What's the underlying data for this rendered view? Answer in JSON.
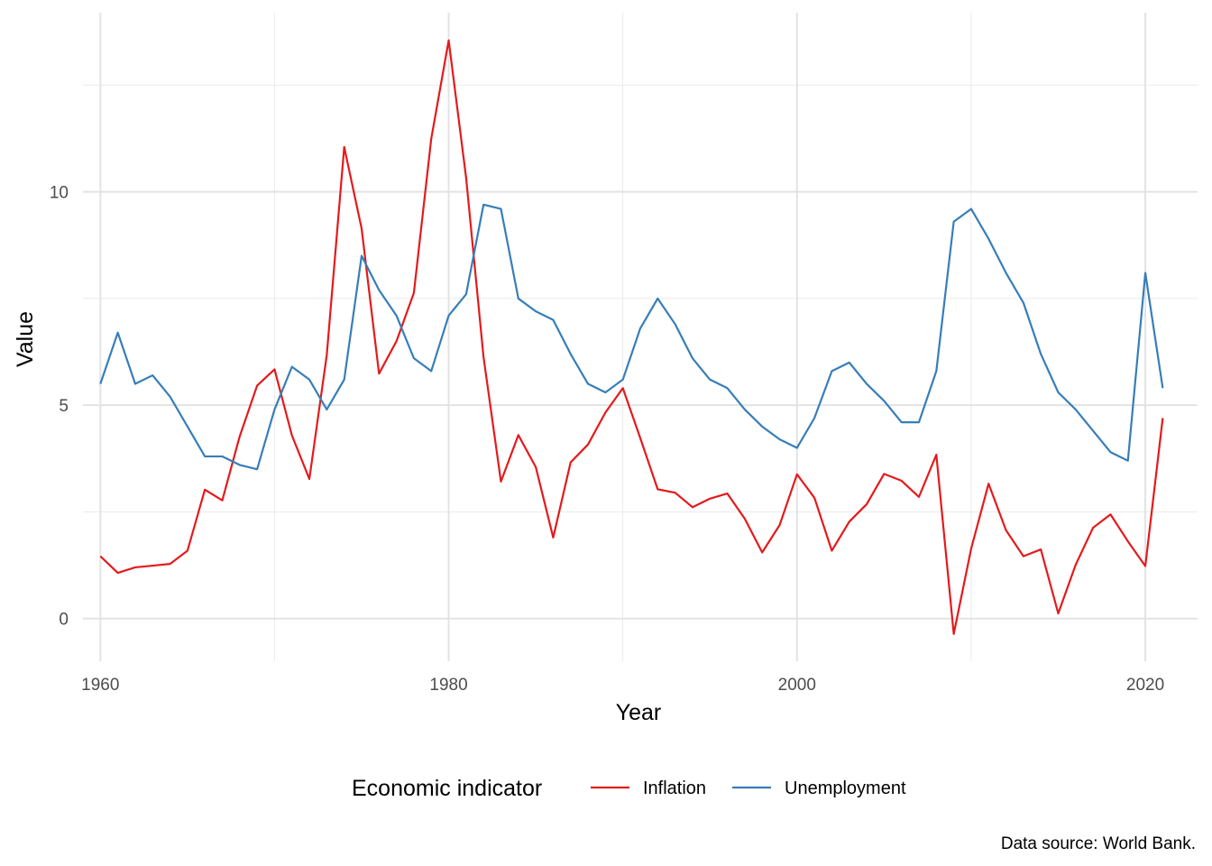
{
  "chart_data": {
    "type": "line",
    "xlabel": "Year",
    "ylabel": "Value",
    "caption": "Data source: World Bank.",
    "legend": {
      "title": "Economic indicator",
      "position": "bottom"
    },
    "xlim": [
      1959,
      2023
    ],
    "ylim": [
      -1,
      14.2
    ],
    "x_ticks": [
      1960,
      1980,
      2000,
      2020
    ],
    "y_ticks": [
      0,
      5,
      10
    ],
    "grid": true,
    "x": [
      1960,
      1961,
      1962,
      1963,
      1964,
      1965,
      1966,
      1967,
      1968,
      1969,
      1970,
      1971,
      1972,
      1973,
      1974,
      1975,
      1976,
      1977,
      1978,
      1979,
      1980,
      1981,
      1982,
      1983,
      1984,
      1985,
      1986,
      1987,
      1988,
      1989,
      1990,
      1991,
      1992,
      1993,
      1994,
      1995,
      1996,
      1997,
      1998,
      1999,
      2000,
      2001,
      2002,
      2003,
      2004,
      2005,
      2006,
      2007,
      2008,
      2009,
      2010,
      2011,
      2012,
      2013,
      2014,
      2015,
      2016,
      2017,
      2018,
      2019,
      2020,
      2021
    ],
    "series": [
      {
        "name": "Inflation",
        "color": "#E41A1C",
        "values": [
          1.46,
          1.07,
          1.2,
          1.24,
          1.28,
          1.59,
          3.02,
          2.77,
          4.27,
          5.46,
          5.84,
          4.29,
          3.27,
          6.18,
          11.05,
          9.14,
          5.74,
          6.5,
          7.63,
          11.25,
          13.55,
          10.33,
          6.13,
          3.21,
          4.3,
          3.55,
          1.9,
          3.66,
          4.08,
          4.83,
          5.4,
          4.23,
          3.03,
          2.95,
          2.61,
          2.81,
          2.93,
          2.34,
          1.55,
          2.19,
          3.38,
          2.83,
          1.59,
          2.27,
          2.68,
          3.39,
          3.23,
          2.85,
          3.84,
          -0.36,
          1.64,
          3.16,
          2.07,
          1.46,
          1.62,
          0.12,
          1.26,
          2.13,
          2.44,
          1.81,
          1.23,
          4.7
        ]
      },
      {
        "name": "Unemployment",
        "color": "#377EB8",
        "values": [
          5.5,
          6.7,
          5.5,
          5.7,
          5.2,
          4.5,
          3.8,
          3.8,
          3.6,
          3.5,
          4.9,
          5.9,
          5.6,
          4.9,
          5.6,
          8.5,
          7.7,
          7.1,
          6.1,
          5.8,
          7.1,
          7.6,
          9.7,
          9.6,
          7.5,
          7.2,
          7.0,
          6.2,
          5.5,
          5.3,
          5.6,
          6.8,
          7.5,
          6.9,
          6.1,
          5.6,
          5.4,
          4.9,
          4.5,
          4.2,
          4.0,
          4.7,
          5.8,
          6.0,
          5.5,
          5.1,
          4.6,
          4.6,
          5.8,
          9.3,
          9.6,
          8.9,
          8.1,
          7.4,
          6.2,
          5.3,
          4.9,
          4.4,
          3.9,
          3.7,
          8.1,
          5.4
        ]
      }
    ]
  }
}
